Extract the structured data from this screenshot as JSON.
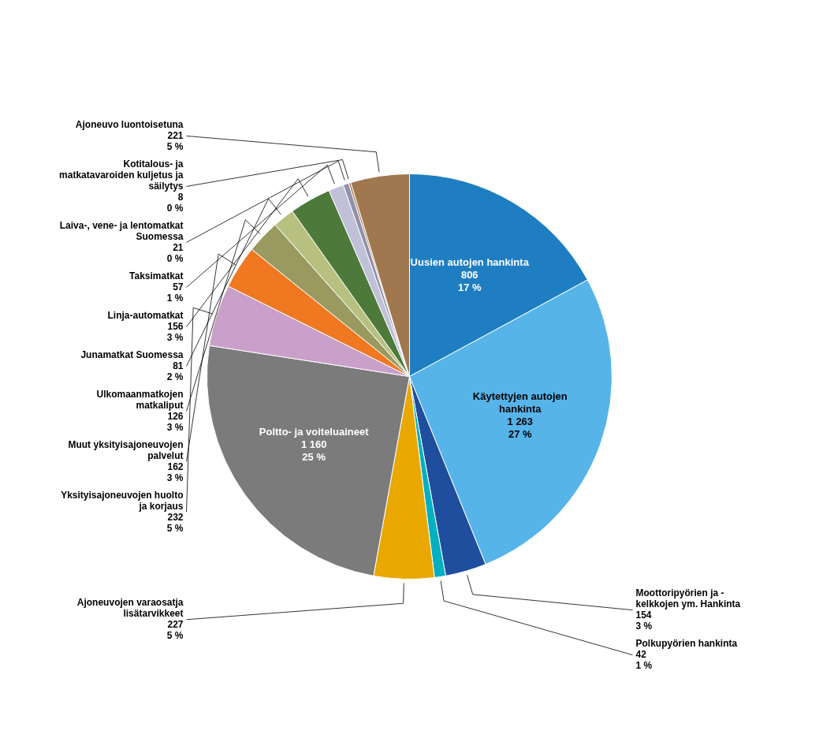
{
  "chart_data": {
    "type": "pie",
    "values": [
      806,
      1263,
      154,
      42,
      227,
      1160,
      232,
      162,
      126,
      81,
      156,
      57,
      21,
      8,
      221
    ],
    "value_labels": [
      "Uusien autojen hankinta\n806\n17 %",
      "Käytettyjen autojen\nhankinta\n1 263\n27 %",
      "Moottoripyörien ja -\nkelkkojen ym. Hankinta\n154\n3 %",
      "Polkupyörien hankinta\n42\n1 %",
      "Ajoneuvojen varaosatja\nlisätarvikkeet\n227\n5 %",
      "Poltto- ja voiteluaineet\n1 160\n25 %",
      "Yksityisajoneuvojen huolto\nja korjaus\n232\n5 %",
      "Muut yksityisajoneuvojen\npalvelut\n162\n3 %",
      "Ulkomaanmatkojen\nmatkaliput\n126\n3 %",
      "Junamatkat Suomessa\n81\n2 %",
      "Linja-automatkat\n156\n3 %",
      "Taksimatkat\n57\n1 %",
      "Laiva-, vene- ja lentomatkat\nSuomessa\n21\n0 %",
      "Kotitalous- ja\nmatkatavaroiden kuljetus ja\nsäilytys\n8\n0 %",
      "Ajoneuvo luontoisetuna\n221\n5 %"
    ],
    "colors": [
      "#1F7EC2",
      "#56B4E9",
      "#1F4E9E",
      "#00B0C0",
      "#E8A800",
      "#7B7B7B",
      "#C9A0C9",
      "#F07820",
      "#9A9A60",
      "#B8C080",
      "#4D7A3A",
      "#C0C0D8",
      "#9090A8",
      "#B08060",
      "#A07850"
    ],
    "data_labels": true
  }
}
